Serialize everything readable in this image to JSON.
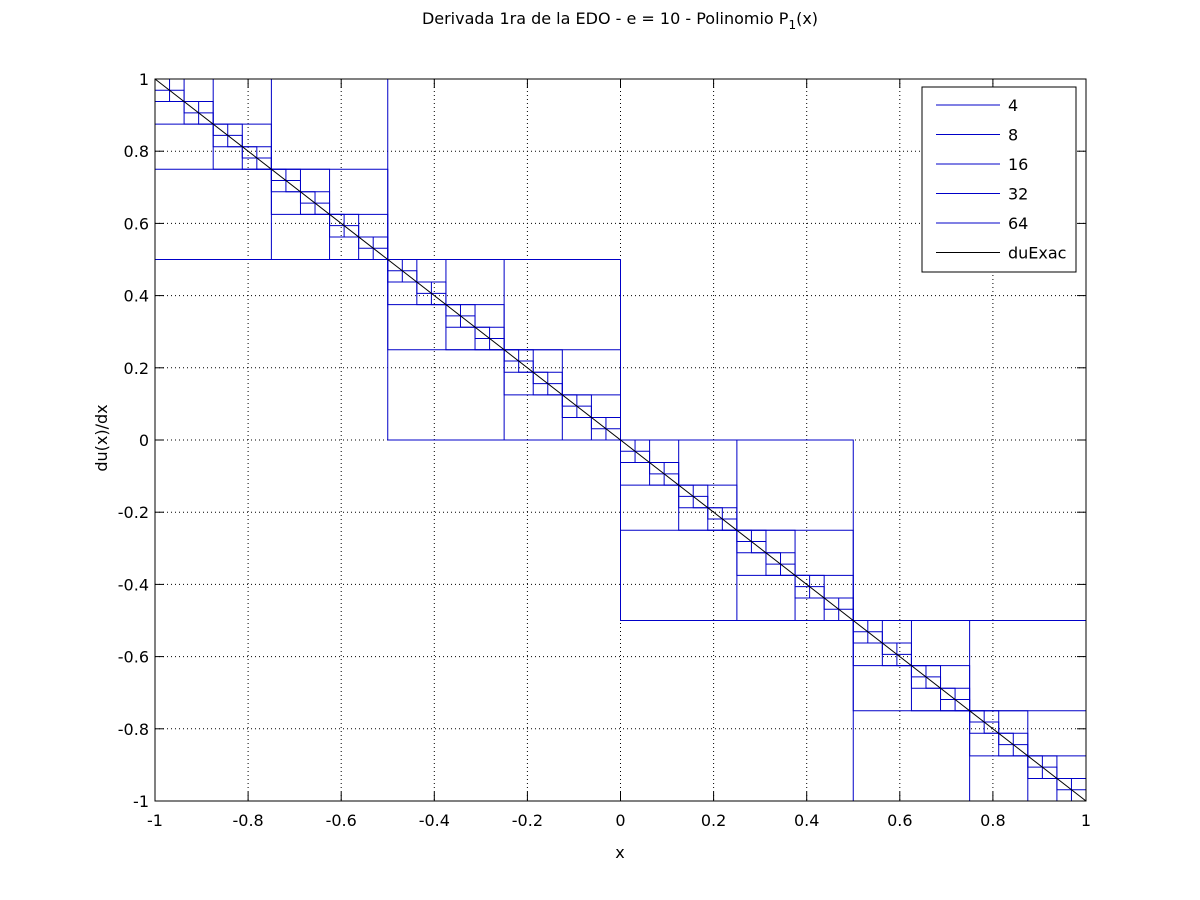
{
  "chart_data": {
    "type": "line",
    "title": "Derivada 1ra de la EDO - e = 10 - Polinomio P",
    "title_subscript": "1",
    "title_suffix": "(x)",
    "xlabel": "x",
    "ylabel": "du(x)/dx",
    "xlim": [
      -1,
      1
    ],
    "ylim": [
      -1,
      1
    ],
    "xticks": [
      -1,
      -0.8,
      -0.6,
      -0.4,
      -0.2,
      0,
      0.2,
      0.4,
      0.6,
      0.8,
      1
    ],
    "yticks": [
      -1,
      -0.8,
      -0.6,
      -0.4,
      -0.2,
      0,
      0.2,
      0.4,
      0.6,
      0.8,
      1
    ],
    "xtick_labels": [
      "-1",
      "-0.8",
      "-0.6",
      "-0.4",
      "-0.2",
      "0",
      "0.2",
      "0.4",
      "0.6",
      "0.8",
      "1"
    ],
    "ytick_labels": [
      "-1",
      "-0.8",
      "-0.6",
      "-0.4",
      "-0.2",
      "0",
      "0.2",
      "0.4",
      "0.6",
      "0.8",
      "1"
    ],
    "grid": true,
    "grid_style": "dotted",
    "legend_position": "top-right",
    "series": [
      {
        "name": "4",
        "kind": "step",
        "elements": 4,
        "color": "#0000c8",
        "end_value": 0
      },
      {
        "name": "8",
        "kind": "step",
        "elements": 8,
        "color": "#0000c8",
        "end_value": 0
      },
      {
        "name": "16",
        "kind": "step",
        "elements": 16,
        "color": "#0000c8",
        "end_value": 0
      },
      {
        "name": "32",
        "kind": "step",
        "elements": 32,
        "color": "#0000c8",
        "end_value": 0
      },
      {
        "name": "64",
        "kind": "step",
        "elements": 64,
        "color": "#0000c8",
        "end_value": 0
      },
      {
        "name": "duExac",
        "kind": "exact",
        "color": "#000000",
        "x": [
          -1,
          1
        ],
        "y": [
          1,
          -1
        ]
      }
    ]
  }
}
